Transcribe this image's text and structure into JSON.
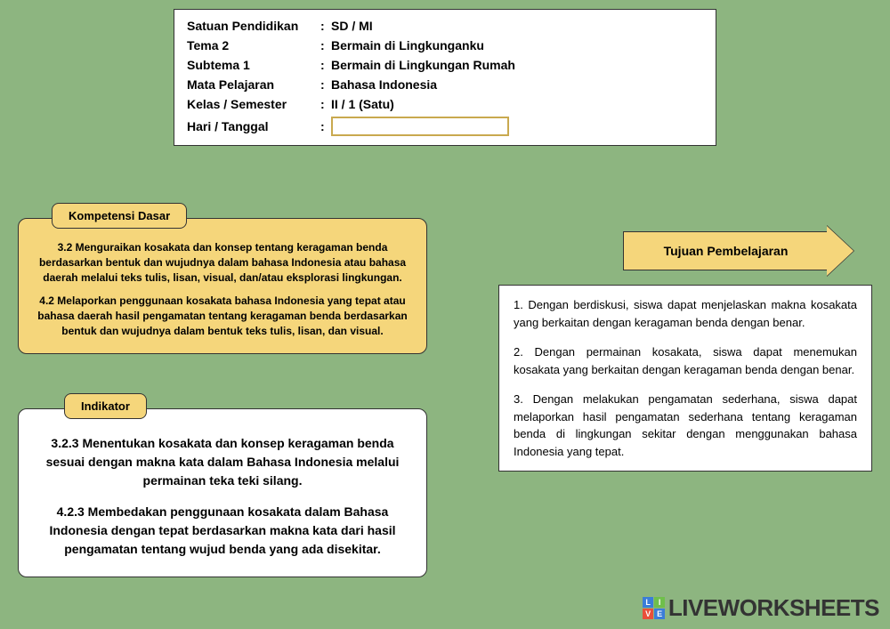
{
  "header": {
    "rows": [
      {
        "label": "Satuan Pendidikan",
        "value": "SD / MI"
      },
      {
        "label": "Tema 2",
        "value": "Bermain di Lingkunganku"
      },
      {
        "label": "Subtema 1",
        "value": "Bermain di Lingkungan Rumah"
      },
      {
        "label": "Mata Pelajaran",
        "value": "Bahasa Indonesia"
      },
      {
        "label": "Kelas / Semester",
        "value": "II / 1 (Satu)"
      },
      {
        "label": "Hari / Tanggal",
        "value": ""
      }
    ]
  },
  "kompetensi": {
    "tab_label": "Kompetensi Dasar",
    "items": [
      "3.2 Menguraikan kosakata dan konsep tentang keragaman benda berdasarkan bentuk dan wujudnya dalam bahasa Indonesia atau bahasa daerah melalui teks tulis, lisan, visual, dan/atau eksplorasi lingkungan.",
      "4.2 Melaporkan penggunaan kosakata bahasa Indonesia yang tepat atau bahasa daerah hasil pengamatan tentang keragaman benda berdasarkan bentuk dan wujudnya dalam bentuk teks tulis, lisan, dan visual."
    ]
  },
  "indikator": {
    "tab_label": "Indikator",
    "items": [
      "3.2.3 Menentukan kosakata dan konsep keragaman benda sesuai dengan makna kata dalam Bahasa Indonesia melalui permainan teka teki silang.",
      "4.2.3 Membedakan penggunaan kosakata dalam Bahasa Indonesia dengan tepat berdasarkan makna kata dari hasil pengamatan tentang wujud benda yang ada disekitar."
    ]
  },
  "tujuan": {
    "title": "Tujuan Pembelajaran",
    "items": [
      "1. Dengan berdiskusi, siswa dapat menjelaskan makna kosakata yang berkaitan dengan keragaman benda dengan benar.",
      "2. Dengan permainan kosakata, siswa dapat menemukan kosakata yang berkaitan dengan keragaman benda dengan benar.",
      "3. Dengan melakukan pengamatan sederhana, siswa dapat melaporkan hasil pengamatan sederhana tentang keragaman benda di lingkungan sekitar dengan menggunakan bahasa Indonesia yang tepat."
    ]
  },
  "watermark": {
    "text": "LIVEWORKSHEETS",
    "icon_colors": [
      "#3b7dd8",
      "#6fbf4b",
      "#e94f3a",
      "#3b7dd8"
    ],
    "icon_letters": [
      "L",
      "I",
      "V",
      "E"
    ]
  },
  "colors": {
    "page_bg": "#8db580",
    "white": "#ffffff",
    "tab_bg": "#f5d67b",
    "border": "#333333",
    "input_border": "#c9a94f"
  }
}
